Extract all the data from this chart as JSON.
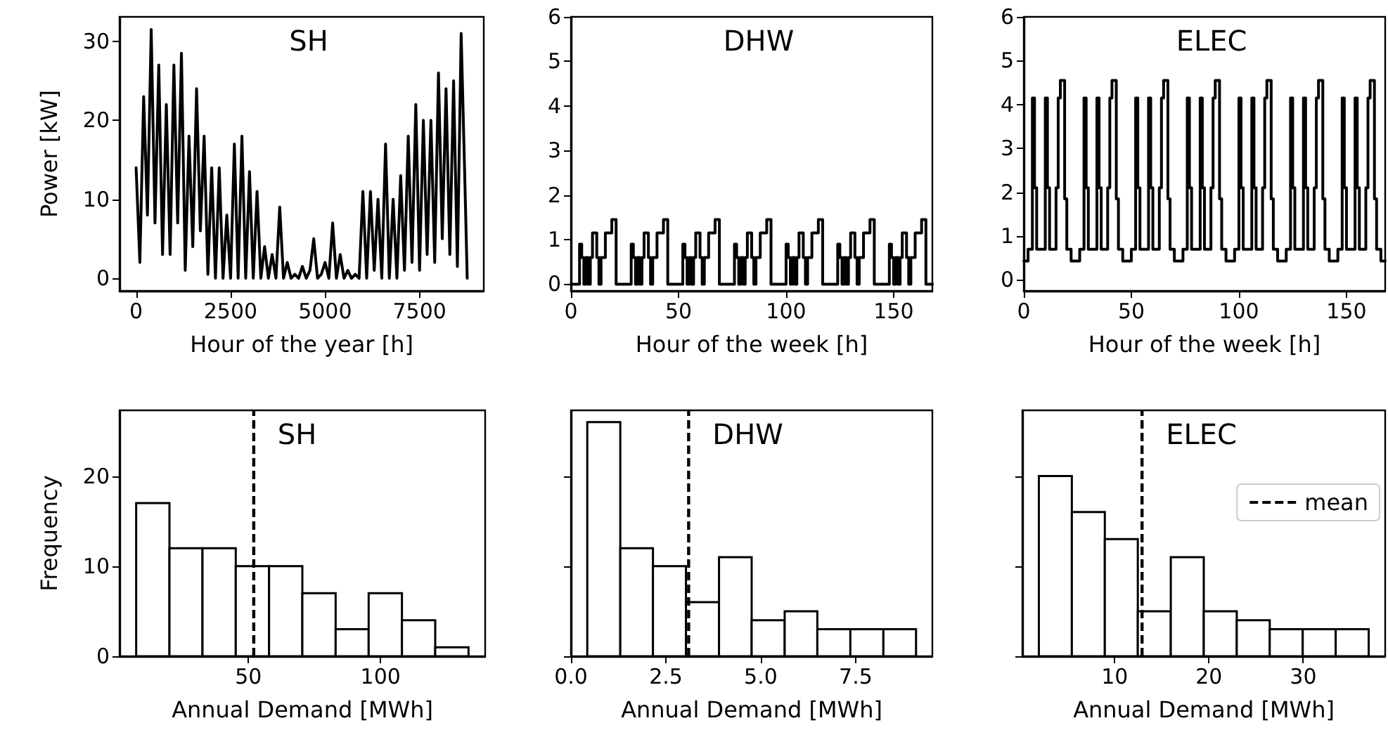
{
  "chart_data": [
    {
      "type": "line",
      "title": "SH",
      "xlabel": "Hour of the year [h]",
      "ylabel": "Power [kW]",
      "color": "#000000",
      "marker": "none",
      "line_style": "solid",
      "grid": false,
      "x": [
        0,
        100,
        200,
        300,
        400,
        500,
        600,
        700,
        800,
        900,
        1000,
        1100,
        1200,
        1300,
        1400,
        1500,
        1600,
        1700,
        1800,
        1900,
        2000,
        2100,
        2200,
        2300,
        2400,
        2500,
        2600,
        2700,
        2800,
        2900,
        3000,
        3100,
        3200,
        3300,
        3400,
        3500,
        3600,
        3700,
        3800,
        3900,
        4000,
        4100,
        4200,
        4300,
        4400,
        4500,
        4600,
        4700,
        4800,
        4900,
        5000,
        5100,
        5200,
        5300,
        5400,
        5500,
        5600,
        5700,
        5800,
        5900,
        6000,
        6100,
        6200,
        6300,
        6400,
        6500,
        6600,
        6700,
        6800,
        6900,
        7000,
        7100,
        7200,
        7300,
        7400,
        7500,
        7600,
        7700,
        7800,
        7900,
        8000,
        8100,
        8200,
        8300,
        8400,
        8500,
        8600,
        8700,
        8760
      ],
      "values": [
        14,
        2,
        23,
        8,
        31.5,
        7,
        27,
        3,
        22,
        3,
        27,
        7,
        28.5,
        1,
        18,
        4,
        24,
        6,
        18,
        0.5,
        14,
        0,
        14,
        0,
        8,
        0,
        17,
        0,
        18,
        0,
        13.5,
        0,
        11,
        0,
        4,
        0,
        3,
        0,
        9,
        0,
        2,
        0,
        0.5,
        0,
        1.5,
        0,
        1,
        5,
        0,
        0.5,
        2,
        0,
        7,
        0,
        3,
        0,
        1,
        0,
        0.5,
        0,
        11,
        0,
        11,
        1,
        10,
        0,
        17,
        0,
        10,
        0,
        13,
        1,
        18,
        2,
        22,
        1,
        20,
        3,
        20,
        2,
        26,
        5,
        24,
        3,
        25,
        1.5,
        31,
        12,
        0
      ],
      "xlim": [
        -438,
        9198
      ],
      "xticks": [
        0,
        2500,
        5000,
        7500
      ],
      "ylim": [
        -1.6,
        33.1
      ],
      "yticks": [
        0,
        10,
        20,
        30
      ]
    },
    {
      "type": "step",
      "title": "DHW",
      "xlabel": "Hour of the week [h]",
      "color": "#000000",
      "marker": "none",
      "line_style": "solid",
      "grid": false,
      "x": [
        0,
        4,
        5,
        6,
        7,
        8,
        9,
        10,
        12,
        13,
        14,
        16,
        19,
        21,
        24,
        28,
        29,
        30,
        31,
        32,
        33,
        34,
        36,
        37,
        38,
        40,
        43,
        45,
        48,
        52,
        53,
        54,
        55,
        56,
        57,
        58,
        60,
        61,
        62,
        64,
        67,
        69,
        72,
        76,
        77,
        78,
        79,
        80,
        81,
        82,
        84,
        85,
        86,
        88,
        91,
        93,
        96,
        100,
        101,
        102,
        103,
        104,
        105,
        106,
        108,
        109,
        110,
        112,
        115,
        117,
        120,
        124,
        125,
        126,
        127,
        128,
        129,
        130,
        132,
        133,
        134,
        136,
        139,
        141,
        144,
        148,
        149,
        150,
        151,
        152,
        153,
        154,
        156,
        157,
        158,
        160,
        163,
        165,
        168
      ],
      "values": [
        0,
        0.9,
        0.6,
        0,
        0.6,
        0,
        0.6,
        1.15,
        0.6,
        0,
        0.6,
        1.15,
        1.45,
        0,
        0,
        0.9,
        0.6,
        0,
        0.6,
        0,
        0.6,
        1.15,
        0.6,
        0,
        0.6,
        1.15,
        1.45,
        0,
        0,
        0.9,
        0.6,
        0,
        0.6,
        0,
        0.6,
        1.15,
        0.6,
        0,
        0.6,
        1.15,
        1.45,
        0,
        0,
        0.9,
        0.6,
        0,
        0.6,
        0,
        0.6,
        1.15,
        0.6,
        0,
        0.6,
        1.15,
        1.45,
        0,
        0,
        0.9,
        0.6,
        0,
        0.6,
        0,
        0.6,
        1.15,
        0.6,
        0,
        0.6,
        1.15,
        1.45,
        0,
        0,
        0.9,
        0.6,
        0,
        0.6,
        0,
        0.6,
        1.15,
        0.6,
        0,
        0.6,
        1.15,
        1.45,
        0,
        0,
        0.9,
        0.6,
        0,
        0.6,
        0,
        0.6,
        1.15,
        0.6,
        0,
        0.6,
        1.15,
        1.45,
        0,
        0
      ],
      "xlim": [
        0,
        168
      ],
      "xticks": [
        0,
        50,
        100,
        150
      ],
      "ylim": [
        -0.15,
        6
      ],
      "yticks": [
        0,
        1,
        2,
        3,
        4,
        5,
        6
      ]
    },
    {
      "type": "step",
      "title": "ELEC",
      "xlabel": "Hour of the week [h]",
      "color": "#000000",
      "marker": "none",
      "line_style": "solid",
      "grid": false,
      "x": [
        0,
        2,
        4,
        5,
        6,
        10,
        11,
        12,
        15,
        16,
        17,
        19,
        20,
        22,
        24,
        26,
        28,
        29,
        30,
        34,
        35,
        36,
        39,
        40,
        41,
        43,
        44,
        46,
        48,
        50,
        52,
        53,
        54,
        58,
        59,
        60,
        63,
        64,
        65,
        67,
        68,
        70,
        72,
        74,
        76,
        77,
        78,
        82,
        83,
        84,
        87,
        88,
        89,
        91,
        92,
        94,
        96,
        98,
        100,
        101,
        102,
        106,
        107,
        108,
        111,
        112,
        113,
        115,
        116,
        118,
        120,
        122,
        124,
        125,
        126,
        130,
        131,
        132,
        135,
        136,
        137,
        139,
        140,
        142,
        144,
        146,
        148,
        149,
        150,
        154,
        155,
        156,
        159,
        160,
        161,
        163,
        164,
        166,
        168
      ],
      "values": [
        0.43,
        0.7,
        4.15,
        2.1,
        0.7,
        4.15,
        2.1,
        0.7,
        2.1,
        4.15,
        4.55,
        1.85,
        0.7,
        0.43,
        0.43,
        0.7,
        4.15,
        2.1,
        0.7,
        4.15,
        2.1,
        0.7,
        2.1,
        4.15,
        4.55,
        1.85,
        0.7,
        0.43,
        0.43,
        0.7,
        4.15,
        2.1,
        0.7,
        4.15,
        2.1,
        0.7,
        2.1,
        4.15,
        4.55,
        1.85,
        0.7,
        0.43,
        0.43,
        0.7,
        4.15,
        2.1,
        0.7,
        4.15,
        2.1,
        0.7,
        2.1,
        4.15,
        4.55,
        1.85,
        0.7,
        0.43,
        0.43,
        0.7,
        4.15,
        2.1,
        0.7,
        4.15,
        2.1,
        0.7,
        2.1,
        4.15,
        4.55,
        1.85,
        0.7,
        0.43,
        0.43,
        0.7,
        4.15,
        2.1,
        0.7,
        4.15,
        2.1,
        0.7,
        2.1,
        4.15,
        4.55,
        1.85,
        0.7,
        0.43,
        0.43,
        0.7,
        4.15,
        2.1,
        0.7,
        4.15,
        2.1,
        0.7,
        2.1,
        4.15,
        4.55,
        1.85,
        0.7,
        0.43,
        0.43
      ],
      "xlim": [
        0,
        168
      ],
      "xticks": [
        0,
        50,
        100,
        150
      ],
      "ylim": [
        -0.25,
        6
      ],
      "yticks": [
        0,
        1,
        2,
        3,
        4,
        5,
        6
      ]
    },
    {
      "type": "histogram",
      "title": "SH",
      "xlabel": "Annual Demand [MWh]",
      "ylabel": "Frequency",
      "color": "#ffffff",
      "grid": false,
      "bins": [
        7.5,
        20.1,
        32.6,
        45.2,
        57.8,
        70.4,
        83.0,
        95.5,
        108.1,
        120.7,
        133.3
      ],
      "values": [
        17,
        12,
        12,
        10,
        10,
        7,
        3,
        7,
        4,
        1
      ],
      "xlim": [
        1.2,
        139.6
      ],
      "xticks": [
        50,
        100
      ],
      "ylim": [
        0,
        27.3
      ],
      "yticks": [
        0,
        10,
        20
      ],
      "ref_lines": [
        {
          "axis": "x",
          "value": 52,
          "color": "#000000",
          "line_style": "dashed"
        }
      ]
    },
    {
      "type": "histogram",
      "title": "DHW",
      "xlabel": "Annual Demand [MWh]",
      "color": "#ffffff",
      "grid": false,
      "tick_labels": "x",
      "bins": [
        0.43,
        1.3,
        2.16,
        3.03,
        3.9,
        4.76,
        5.63,
        6.49,
        7.36,
        8.23,
        9.09
      ],
      "values": [
        26,
        12,
        10,
        6,
        11,
        4,
        5,
        3,
        3,
        3
      ],
      "xlim": [
        0,
        9.52
      ],
      "xticks": [
        {
          "value": 0,
          "label": "0.0"
        },
        2.5,
        {
          "value": 5,
          "label": "5.0"
        },
        7.5
      ],
      "ylim": [
        0,
        27.3
      ],
      "yticks": [
        0,
        10,
        20
      ],
      "ref_lines": [
        {
          "axis": "x",
          "value": 3.1,
          "color": "#000000",
          "line_style": "dashed"
        }
      ]
    },
    {
      "type": "histogram",
      "title": "ELEC",
      "xlabel": "Annual Demand [MWh]",
      "color": "#ffffff",
      "grid": false,
      "tick_labels": "x",
      "legend": "top right",
      "bins": [
        1.95,
        5.45,
        8.95,
        12.45,
        15.95,
        19.45,
        22.95,
        26.45,
        29.95,
        33.45,
        36.95
      ],
      "values": [
        20,
        16,
        13,
        5,
        11,
        5,
        4,
        3,
        3,
        3
      ],
      "xlim": [
        0.2,
        38.7
      ],
      "xticks": [
        10,
        20,
        30
      ],
      "ylim": [
        0,
        27.3
      ],
      "yticks": [
        0,
        10,
        20
      ],
      "ref_lines": [
        {
          "axis": "x",
          "value": 12.9,
          "label": "mean",
          "color": "#000000",
          "line_style": "dashed"
        }
      ]
    }
  ]
}
